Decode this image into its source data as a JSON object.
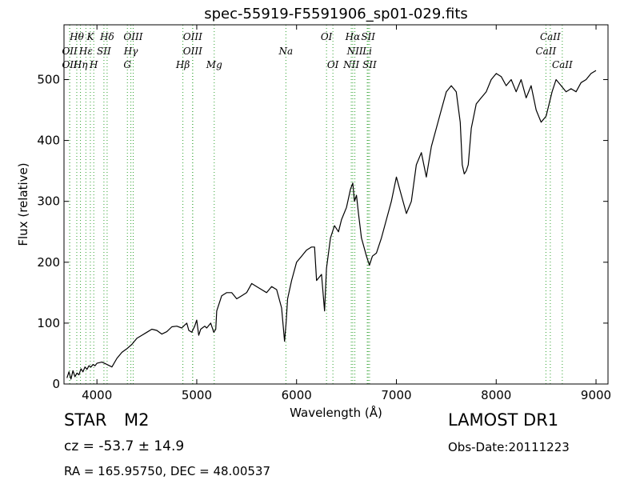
{
  "chart_data": {
    "type": "line",
    "title": "spec-55919-F5591906_sp01-029.fits",
    "xlabel": "Wavelength (Å)",
    "ylabel": "Flux (relative)",
    "xlim": [
      3670,
      9120
    ],
    "ylim": [
      0,
      590
    ],
    "xticks": [
      4000,
      5000,
      6000,
      7000,
      8000,
      9000
    ],
    "yticks": [
      0,
      100,
      200,
      300,
      400,
      500
    ],
    "grid": false,
    "series": [
      {
        "color": "#000000",
        "x": [
          3700,
          3720,
          3740,
          3760,
          3780,
          3800,
          3820,
          3840,
          3860,
          3880,
          3900,
          3920,
          3940,
          3960,
          3980,
          4000,
          4050,
          4100,
          4150,
          4200,
          4250,
          4300,
          4350,
          4400,
          4450,
          4500,
          4550,
          4600,
          4650,
          4700,
          4750,
          4800,
          4850,
          4880,
          4900,
          4920,
          4950,
          4980,
          5000,
          5020,
          5040,
          5080,
          5100,
          5140,
          5170,
          5190,
          5200,
          5250,
          5300,
          5350,
          5400,
          5450,
          5500,
          5550,
          5600,
          5650,
          5700,
          5750,
          5800,
          5850,
          5880,
          5895,
          5910,
          5950,
          6000,
          6050,
          6100,
          6150,
          6180,
          6200,
          6250,
          6280,
          6300,
          6340,
          6380,
          6420,
          6450,
          6500,
          6540,
          6563,
          6580,
          6600,
          6620,
          6650,
          6700,
          6730,
          6760,
          6800,
          6850,
          6900,
          6950,
          7000,
          7050,
          7100,
          7150,
          7200,
          7250,
          7300,
          7350,
          7400,
          7450,
          7500,
          7550,
          7600,
          7640,
          7660,
          7680,
          7700,
          7720,
          7750,
          7800,
          7850,
          7900,
          7950,
          8000,
          8050,
          8100,
          8150,
          8200,
          8250,
          8300,
          8350,
          8400,
          8450,
          8500,
          8530,
          8560,
          8600,
          8650,
          8700,
          8750,
          8800,
          8850,
          8900,
          8950,
          9000
        ],
        "y": [
          10,
          20,
          8,
          22,
          12,
          18,
          15,
          25,
          20,
          28,
          24,
          30,
          28,
          32,
          30,
          34,
          36,
          32,
          28,
          42,
          52,
          58,
          65,
          75,
          80,
          85,
          90,
          88,
          82,
          86,
          94,
          95,
          92,
          97,
          100,
          88,
          85,
          95,
          105,
          80,
          90,
          95,
          92,
          100,
          85,
          90,
          120,
          145,
          150,
          150,
          140,
          145,
          150,
          165,
          160,
          155,
          150,
          160,
          155,
          125,
          70,
          100,
          140,
          170,
          200,
          210,
          220,
          225,
          225,
          170,
          180,
          120,
          190,
          240,
          260,
          250,
          270,
          290,
          320,
          330,
          300,
          310,
          280,
          240,
          210,
          195,
          210,
          215,
          240,
          270,
          300,
          340,
          310,
          280,
          300,
          360,
          380,
          340,
          390,
          420,
          450,
          480,
          490,
          480,
          430,
          360,
          345,
          350,
          360,
          420,
          460,
          470,
          480,
          500,
          510,
          505,
          490,
          500,
          480,
          500,
          470,
          490,
          450,
          430,
          440,
          460,
          480,
          500,
          490,
          480,
          485,
          480,
          495,
          500,
          510,
          515
        ]
      }
    ],
    "line_markers": [
      {
        "label": "Hθ",
        "x": 3798,
        "row": 0
      },
      {
        "label": "K",
        "x": 3934,
        "row": 0
      },
      {
        "label": "Hδ",
        "x": 4102,
        "row": 0
      },
      {
        "label": "OIII",
        "x": 4363,
        "row": 0
      },
      {
        "label": "OIII",
        "x": 4959,
        "row": 0
      },
      {
        "label": "OI",
        "x": 6300,
        "row": 0
      },
      {
        "label": "Hα",
        "x": 6563,
        "row": 0
      },
      {
        "label": "SII",
        "x": 6717,
        "row": 0
      },
      {
        "label": "CaII",
        "x": 8542,
        "row": 0
      },
      {
        "label": "OII",
        "x": 3727,
        "row": 1
      },
      {
        "label": "Hε",
        "x": 3889,
        "row": 1
      },
      {
        "label": "SII",
        "x": 4070,
        "row": 1
      },
      {
        "label": "Hγ",
        "x": 4340,
        "row": 1
      },
      {
        "label": "OIII",
        "x": 4959,
        "row": 1
      },
      {
        "label": "Na",
        "x": 5893,
        "row": 1
      },
      {
        "label": "NII",
        "x": 6584,
        "row": 1
      },
      {
        "label": "Li",
        "x": 6708,
        "row": 1
      },
      {
        "label": "CaII",
        "x": 8498,
        "row": 1
      },
      {
        "label": "OII",
        "x": 3727,
        "row": 2
      },
      {
        "label": "Hη",
        "x": 3835,
        "row": 2
      },
      {
        "label": "H",
        "x": 3968,
        "row": 2
      },
      {
        "label": "G",
        "x": 4305,
        "row": 2
      },
      {
        "label": "Hβ",
        "x": 4861,
        "row": 2
      },
      {
        "label": "Mg",
        "x": 5175,
        "row": 2
      },
      {
        "label": "OI",
        "x": 6364,
        "row": 2
      },
      {
        "label": "NII",
        "x": 6548,
        "row": 2
      },
      {
        "label": "SII",
        "x": 6731,
        "row": 2
      },
      {
        "label": "CaII",
        "x": 8662,
        "row": 2
      }
    ]
  },
  "annotations": {
    "object_class": "STAR",
    "subclass": "M2",
    "survey": "LAMOST DR1",
    "redshift": "cz = -53.7 ± 14.9",
    "obs_date": "Obs-Date:20111223",
    "coords": "RA = 165.95750, DEC = 48.00537"
  }
}
